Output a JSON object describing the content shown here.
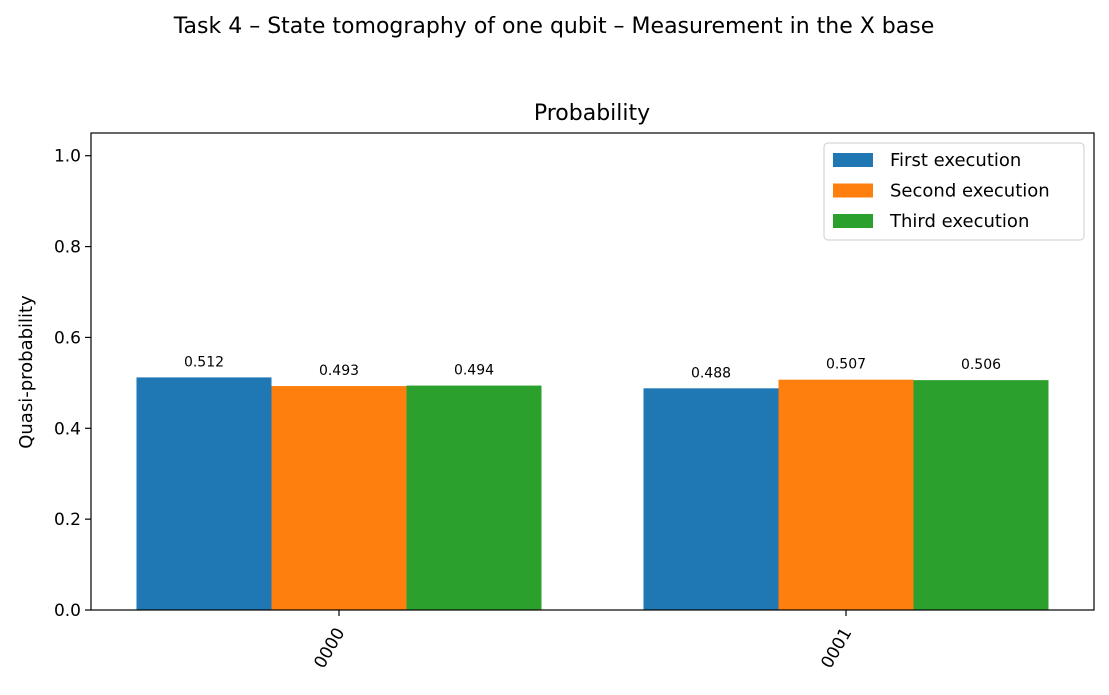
{
  "chart_data": {
    "type": "bar",
    "suptitle": "Task 4 – State tomography of one qubit – Measurement in the X base",
    "title": "Probability",
    "xlabel": "",
    "ylabel": "Quasi-probability",
    "categories": [
      "0000",
      "0001"
    ],
    "series": [
      {
        "name": "First execution",
        "values": [
          0.512,
          0.488
        ],
        "labels": [
          "0.512",
          "0.488"
        ],
        "color": "#1f77b4"
      },
      {
        "name": "Second execution",
        "values": [
          0.493,
          0.507
        ],
        "labels": [
          "0.493",
          "0.507"
        ],
        "color": "#ff7f0e"
      },
      {
        "name": "Third execution",
        "values": [
          0.494,
          0.506
        ],
        "labels": [
          "0.494",
          "0.506"
        ],
        "color": "#2ca02c"
      }
    ],
    "ylim": [
      0,
      1.05
    ],
    "yticks": [
      "0.0",
      "0.2",
      "0.4",
      "0.6",
      "0.8",
      "1.0"
    ],
    "ytick_values": [
      0,
      0.2,
      0.4,
      0.6,
      0.8,
      1.0
    ],
    "xtick_rotation_deg": 60,
    "grid": false,
    "legend_position": "top-right"
  }
}
